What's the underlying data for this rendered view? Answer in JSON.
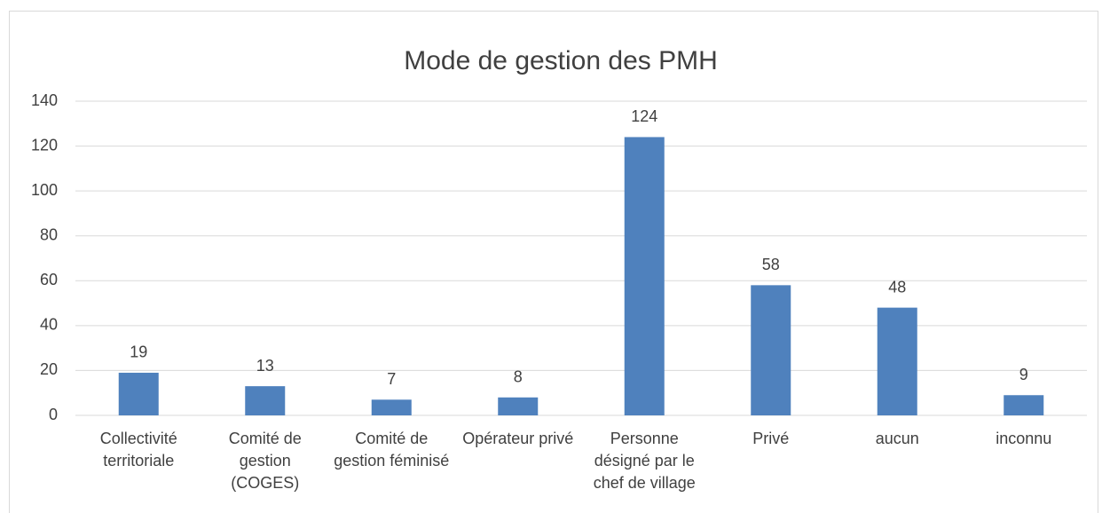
{
  "chart_data": {
    "type": "bar",
    "title": "Mode de gestion des PMH",
    "categories": [
      "Collectivité territoriale",
      "Comité de gestion (COGES)",
      "Comité de gestion féminisé",
      "Opérateur privé",
      "Personne désigné par le chef de village",
      "Privé",
      "aucun",
      "inconnu"
    ],
    "values": [
      19,
      13,
      7,
      8,
      124,
      58,
      48,
      9
    ],
    "color": "#4f81bd",
    "ylim": [
      0,
      140
    ],
    "yticks": [
      0,
      20,
      40,
      60,
      80,
      100,
      120,
      140
    ],
    "grid": true
  }
}
